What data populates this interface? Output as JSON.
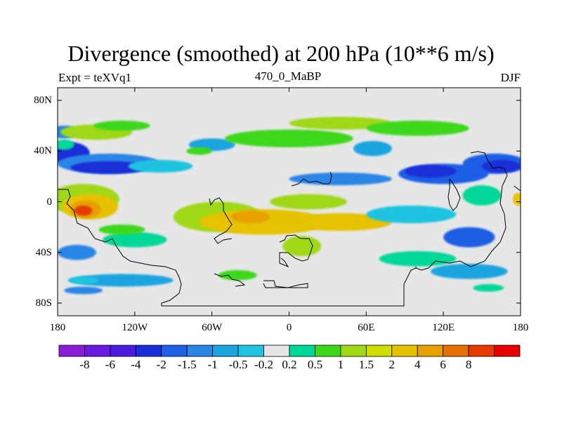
{
  "title": "Divergence (smoothed) at 200 hPa (10**6 m/s)",
  "expt_label": "Expt = teXVq1",
  "subtitle": "470_0_MaBP",
  "season": "DJF",
  "lat_ticks": [
    {
      "lat": 80,
      "label": "80N"
    },
    {
      "lat": 40,
      "label": "40N"
    },
    {
      "lat": 0,
      "label": "0"
    },
    {
      "lat": -40,
      "label": "40S"
    },
    {
      "lat": -80,
      "label": "80S"
    }
  ],
  "lon_ticks": [
    {
      "lon": -180,
      "label": "180"
    },
    {
      "lon": -120,
      "label": "120W"
    },
    {
      "lon": -60,
      "label": "60W"
    },
    {
      "lon": 0,
      "label": "0"
    },
    {
      "lon": 60,
      "label": "60E"
    },
    {
      "lon": 120,
      "label": "120E"
    },
    {
      "lon": 180,
      "label": "180"
    }
  ],
  "colorbar": {
    "colors": [
      "#8a1cd6",
      "#6a1ae0",
      "#4a1ae0",
      "#1a2ed8",
      "#1e5fe6",
      "#2a86e6",
      "#1aa4e0",
      "#1ec4e0",
      "#e6e6e6",
      "#00d89a",
      "#3ed81a",
      "#9ed816",
      "#cede00",
      "#e6c200",
      "#e6a000",
      "#e67000",
      "#e63a00",
      "#e60000"
    ],
    "labels": [
      "-8",
      "-6",
      "-4",
      "-2",
      "-1.5",
      "-1",
      "-0.5",
      "-0.2",
      "0.2",
      "0.5",
      "1",
      "1.5",
      "2",
      "4",
      "6",
      "8"
    ]
  },
  "map_field": {
    "missing_color": "#e6e6e6",
    "features": [
      {
        "level": 3,
        "lon": -170,
        "lat": 38,
        "rlon": 15,
        "rlat": 9
      },
      {
        "level": 5,
        "lon": -175,
        "lat": 55,
        "rlon": 12,
        "rlat": 5
      },
      {
        "level": 11,
        "lon": -150,
        "lat": 55,
        "rlon": 28,
        "rlat": 6
      },
      {
        "level": 10,
        "lon": -130,
        "lat": 60,
        "rlon": 22,
        "rlat": 4
      },
      {
        "level": 9,
        "lon": -175,
        "lat": 45,
        "rlon": 8,
        "rlat": 4
      },
      {
        "level": 5,
        "lon": -140,
        "lat": 30,
        "rlon": 40,
        "rlat": 8
      },
      {
        "level": 3,
        "lon": -140,
        "lat": 27,
        "rlon": 30,
        "rlat": 5
      },
      {
        "level": 7,
        "lon": -100,
        "lat": 28,
        "rlon": 25,
        "rlat": 5
      },
      {
        "level": 6,
        "lon": -60,
        "lat": 45,
        "rlon": 18,
        "rlat": 5
      },
      {
        "level": 10,
        "lon": -70,
        "lat": 40,
        "rlon": 10,
        "rlat": 3
      },
      {
        "level": 11,
        "lon": -160,
        "lat": 2,
        "rlon": 28,
        "rlat": 12
      },
      {
        "level": 13,
        "lon": -155,
        "lat": -4,
        "rlon": 22,
        "rlat": 10
      },
      {
        "level": 14,
        "lon": -158,
        "lat": -6,
        "rlon": 12,
        "rlat": 7
      },
      {
        "level": 16,
        "lon": -160,
        "lat": -7,
        "rlon": 7,
        "rlat": 4
      },
      {
        "level": 11,
        "lon": -55,
        "lat": -12,
        "rlon": 35,
        "rlat": 12
      },
      {
        "level": 13,
        "lon": -20,
        "lat": -16,
        "rlon": 50,
        "rlat": 10
      },
      {
        "level": 14,
        "lon": -30,
        "lat": -12,
        "rlon": 15,
        "rlat": 5
      },
      {
        "level": 13,
        "lon": 40,
        "lat": -16,
        "rlon": 40,
        "rlat": 7
      },
      {
        "level": 11,
        "lon": 15,
        "lat": 0,
        "rlon": 30,
        "rlat": 6
      },
      {
        "level": 9,
        "lon": -120,
        "lat": -30,
        "rlon": 25,
        "rlat": 6
      },
      {
        "level": 10,
        "lon": -130,
        "lat": -22,
        "rlon": 18,
        "rlat": 4
      },
      {
        "level": 5,
        "lon": -165,
        "lat": -40,
        "rlon": 15,
        "rlat": 6
      },
      {
        "level": 6,
        "lon": -130,
        "lat": -62,
        "rlon": 40,
        "rlat": 5
      },
      {
        "level": 5,
        "lon": -160,
        "lat": -70,
        "rlon": 15,
        "rlat": 3
      },
      {
        "level": 11,
        "lon": 10,
        "lat": -35,
        "rlon": 15,
        "rlat": 8
      },
      {
        "level": 10,
        "lon": -40,
        "lat": -58,
        "rlon": 15,
        "rlat": 4
      },
      {
        "level": 6,
        "lon": 65,
        "lat": 42,
        "rlon": 15,
        "rlat": 6
      },
      {
        "level": 10,
        "lon": 0,
        "lat": 50,
        "rlon": 50,
        "rlat": 7
      },
      {
        "level": 11,
        "lon": 40,
        "lat": 62,
        "rlon": 40,
        "rlat": 5
      },
      {
        "level": 10,
        "lon": 100,
        "lat": 58,
        "rlon": 40,
        "rlat": 6
      },
      {
        "level": 4,
        "lon": 120,
        "lat": 22,
        "rlon": 35,
        "rlat": 8
      },
      {
        "level": 3,
        "lon": 110,
        "lat": 24,
        "rlon": 20,
        "rlat": 5
      },
      {
        "level": 4,
        "lon": 160,
        "lat": 30,
        "rlon": 25,
        "rlat": 8
      },
      {
        "level": 3,
        "lon": 165,
        "lat": 28,
        "rlon": 15,
        "rlat": 5
      },
      {
        "level": 5,
        "lon": 40,
        "lat": 18,
        "rlon": 40,
        "rlat": 5
      },
      {
        "level": 9,
        "lon": 150,
        "lat": 5,
        "rlon": 15,
        "rlat": 8
      },
      {
        "level": 13,
        "lon": 178,
        "lat": 2,
        "rlon": 4,
        "rlat": 5
      },
      {
        "level": 4,
        "lon": 140,
        "lat": -28,
        "rlon": 20,
        "rlat": 8
      },
      {
        "level": 7,
        "lon": 95,
        "lat": -10,
        "rlon": 35,
        "rlat": 7
      },
      {
        "level": 9,
        "lon": 100,
        "lat": -45,
        "rlon": 30,
        "rlat": 6
      },
      {
        "level": 6,
        "lon": 140,
        "lat": -55,
        "rlon": 30,
        "rlat": 6
      },
      {
        "level": 7,
        "lon": -160,
        "lat": -62,
        "rlon": 12,
        "rlat": 3
      },
      {
        "level": 9,
        "lon": 155,
        "lat": -68,
        "rlon": 12,
        "rlat": 3
      }
    ]
  }
}
